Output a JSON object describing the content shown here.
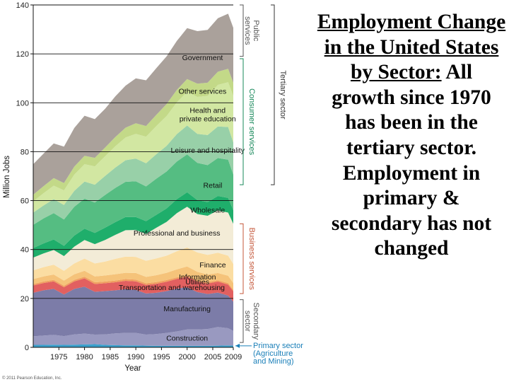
{
  "chart_data": {
    "type": "area",
    "stacked": true,
    "ylabel": "Million Jobs",
    "xlabel": "Year",
    "ylim": [
      0,
      140
    ],
    "yticks": [
      0,
      20,
      40,
      60,
      80,
      100,
      120,
      140
    ],
    "xticks": [
      "1975",
      "1980",
      "1985",
      "1990",
      "1995",
      "2000",
      "2005",
      "2009"
    ],
    "x": [
      1970,
      1972,
      1974,
      1976,
      1978,
      1980,
      1982,
      1984,
      1986,
      1988,
      1990,
      1992,
      1994,
      1996,
      1998,
      2000,
      2002,
      2004,
      2006,
      2008,
      2009
    ],
    "series": [
      {
        "name": "Primary sector (Agriculture and Mining)",
        "label": "",
        "color": "#3aa0cc",
        "values": [
          1.0,
          1.0,
          1.1,
          1.0,
          1.1,
          1.2,
          1.3,
          1.0,
          0.9,
          0.8,
          0.8,
          0.7,
          0.6,
          0.6,
          0.6,
          0.6,
          0.6,
          0.6,
          0.7,
          0.8,
          0.7
        ]
      },
      {
        "name": "Construction",
        "label": "Construction",
        "color": "#9999c0",
        "values": [
          3.5,
          3.8,
          4.0,
          3.6,
          4.2,
          4.4,
          3.9,
          4.3,
          4.8,
          5.1,
          5.1,
          4.5,
          4.8,
          5.3,
          5.9,
          6.7,
          6.7,
          6.9,
          7.6,
          7.0,
          6.0
        ]
      },
      {
        "name": "Manufacturing",
        "label": "Manufacturing",
        "color": "#7c7ca8",
        "values": [
          17.8,
          18.5,
          18.8,
          17.0,
          18.6,
          19.2,
          17.5,
          17.7,
          17.6,
          17.9,
          17.6,
          16.8,
          16.9,
          17.1,
          17.5,
          17.2,
          15.3,
          14.3,
          14.1,
          13.4,
          12.0
        ]
      },
      {
        "name": "Transportation and warehousing",
        "label": "Transportation and warehousing",
        "color": "#e26060",
        "values": [
          3.0,
          3.0,
          3.1,
          3.0,
          3.1,
          3.4,
          3.2,
          3.2,
          3.3,
          3.4,
          3.5,
          3.5,
          3.7,
          3.8,
          4.0,
          4.4,
          4.3,
          4.3,
          4.5,
          4.5,
          4.2
        ]
      },
      {
        "name": "Utilities",
        "label": "Utilities",
        "color": "#f0a060",
        "values": [
          0.6,
          0.6,
          0.6,
          0.6,
          0.6,
          0.7,
          0.7,
          0.7,
          0.7,
          0.7,
          0.7,
          0.7,
          0.7,
          0.7,
          0.6,
          0.6,
          0.6,
          0.6,
          0.5,
          0.6,
          0.6
        ]
      },
      {
        "name": "Information",
        "label": "Information",
        "color": "#f5c37a",
        "values": [
          2.0,
          2.1,
          2.2,
          2.1,
          2.3,
          2.4,
          2.4,
          2.5,
          2.6,
          2.6,
          2.7,
          2.6,
          2.8,
          3.0,
          3.3,
          3.6,
          3.4,
          3.1,
          3.0,
          3.0,
          2.8
        ]
      },
      {
        "name": "Finance",
        "label": "Finance",
        "color": "#fbdda2",
        "values": [
          3.6,
          3.8,
          4.0,
          4.0,
          4.4,
          5.0,
          5.3,
          5.7,
          6.3,
          6.6,
          6.6,
          6.6,
          6.9,
          7.0,
          7.4,
          7.7,
          7.9,
          8.0,
          8.3,
          8.2,
          7.8
        ]
      },
      {
        "name": "Professional and business",
        "label": "Professional and business",
        "color": "#f3ecd7",
        "values": [
          5.2,
          5.6,
          6.0,
          6.0,
          6.9,
          7.6,
          7.9,
          8.8,
          9.8,
          10.8,
          11.0,
          11.0,
          12.5,
          13.8,
          15.6,
          16.7,
          15.7,
          16.0,
          17.3,
          17.6,
          16.4
        ]
      },
      {
        "name": "Wholesale",
        "label": "Wholesale",
        "color": "#1fae6b",
        "values": [
          3.9,
          4.1,
          4.3,
          4.2,
          4.5,
          4.6,
          4.6,
          5.0,
          5.2,
          5.4,
          5.3,
          5.2,
          5.3,
          5.5,
          5.7,
          5.9,
          5.7,
          5.6,
          5.9,
          6.0,
          5.6
        ]
      },
      {
        "name": "Retail",
        "label": "Retail",
        "color": "#55bd82",
        "values": [
          9.5,
          10.2,
          10.8,
          10.8,
          11.8,
          12.3,
          12.4,
          13.4,
          14.0,
          14.4,
          14.6,
          14.2,
          14.8,
          15.1,
          15.4,
          15.5,
          15.2,
          15.1,
          15.5,
          15.6,
          14.6
        ]
      },
      {
        "name": "Leisure and hospitality",
        "label": "Leisure and hospitality",
        "color": "#98d0a8",
        "values": [
          5.0,
          5.3,
          5.7,
          5.9,
          6.5,
          7.0,
          7.3,
          7.8,
          8.3,
          8.8,
          9.3,
          9.5,
          10.0,
          10.5,
          11.2,
          11.8,
          11.9,
          12.3,
          12.9,
          13.4,
          13.1
        ]
      },
      {
        "name": "Health and private education",
        "label": "Health and\nprivate education",
        "color": "#d2e7a2",
        "values": [
          4.6,
          5.0,
          5.5,
          6.0,
          6.6,
          7.1,
          7.5,
          8.0,
          8.7,
          9.3,
          10.1,
          10.8,
          11.5,
          12.2,
          13.0,
          13.8,
          15.1,
          16.0,
          17.0,
          18.3,
          19.0
        ]
      },
      {
        "name": "Other services",
        "label": "Other services",
        "color": "#c3d988",
        "values": [
          2.7,
          2.9,
          3.1,
          3.0,
          3.3,
          3.4,
          3.5,
          3.6,
          3.8,
          4.0,
          4.3,
          4.4,
          4.6,
          4.9,
          5.1,
          5.2,
          5.4,
          5.4,
          5.4,
          5.5,
          5.4
        ]
      },
      {
        "name": "Government",
        "label": "Government",
        "color": "#aaa19b",
        "values": [
          12.5,
          13.3,
          14.2,
          14.9,
          15.8,
          16.4,
          15.8,
          15.8,
          16.6,
          17.2,
          18.4,
          18.7,
          19.1,
          19.5,
          20.0,
          20.8,
          21.5,
          21.6,
          21.9,
          22.5,
          22.5
        ]
      }
    ],
    "groups": [
      {
        "name": "Public services",
        "color": "#555555",
        "range": [
          119,
          140
        ]
      },
      {
        "name": "Consumer services",
        "color": "#17885a",
        "range": [
          66.5,
          118
        ]
      },
      {
        "name": "Business services",
        "color": "#c4573a",
        "range": [
          22,
          50.5
        ]
      },
      {
        "name": "Tertiary sector",
        "color": "#333333",
        "range": [
          66.5,
          140
        ]
      },
      {
        "name": "Secondary sector",
        "color": "#555555",
        "range": [
          2,
          19.5
        ]
      }
    ],
    "primary_label": [
      "Primary sector",
      "(Agriculture",
      "and Mining)"
    ],
    "primary_label_color": "#1a7fb8"
  },
  "copyright": "© 2011 Pearson Education, Inc.",
  "slide": {
    "title": "Employment Change in the United States by Sector:",
    "body": " All growth since 1970 has been in the tertiary sector. Employment in primary & secondary has not changed"
  }
}
